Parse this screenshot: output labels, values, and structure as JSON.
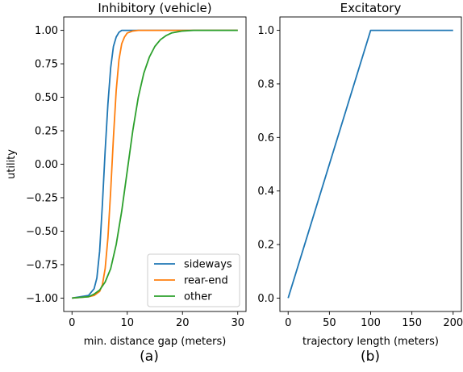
{
  "chart_data": [
    {
      "type": "line",
      "title": "Inhibitory (vehicle)",
      "xlabel": "min. distance gap (meters)",
      "ylabel": "utility",
      "xlim": [
        -1.5,
        31.5
      ],
      "ylim": [
        -1.1,
        1.1
      ],
      "x_ticks": [
        0,
        10,
        20,
        30
      ],
      "x_tick_labels": [
        "0",
        "10",
        "20",
        "30"
      ],
      "y_ticks": [
        -1.0,
        -0.75,
        -0.5,
        -0.25,
        0.0,
        0.25,
        0.5,
        0.75,
        1.0
      ],
      "y_tick_labels": [
        "−1.00",
        "−0.75",
        "−0.50",
        "−0.25",
        "0.00",
        "0.25",
        "0.50",
        "0.75",
        "1.00"
      ],
      "grid": false,
      "legend_position": "lower-right",
      "series": [
        {
          "name": "sideways",
          "color": "#1f77b4",
          "x": [
            0,
            3,
            4,
            4.5,
            5,
            5.5,
            6,
            6.5,
            7,
            7.5,
            8,
            8.5,
            9,
            10,
            11,
            30
          ],
          "y": [
            -1.0,
            -0.98,
            -0.93,
            -0.85,
            -0.65,
            -0.3,
            0.1,
            0.45,
            0.72,
            0.88,
            0.95,
            0.985,
            1.0,
            1.0,
            1.0,
            1.0
          ]
        },
        {
          "name": "rear-end",
          "color": "#ff7f0e",
          "x": [
            0,
            3,
            4,
            5,
            5.5,
            6,
            6.5,
            7,
            7.5,
            8,
            8.5,
            9,
            9.5,
            10,
            11,
            12,
            30
          ],
          "y": [
            -1.0,
            -0.99,
            -0.98,
            -0.95,
            -0.9,
            -0.78,
            -0.55,
            -0.2,
            0.2,
            0.55,
            0.78,
            0.9,
            0.95,
            0.98,
            0.995,
            1.0,
            1.0
          ]
        },
        {
          "name": "other",
          "color": "#2ca02c",
          "x": [
            0,
            3,
            4,
            5,
            6,
            7,
            8,
            9,
            10,
            11,
            12,
            13,
            14,
            15,
            16,
            17,
            18,
            20,
            22,
            30
          ],
          "y": [
            -1.0,
            -0.99,
            -0.97,
            -0.94,
            -0.88,
            -0.78,
            -0.6,
            -0.35,
            -0.05,
            0.25,
            0.5,
            0.68,
            0.8,
            0.88,
            0.93,
            0.96,
            0.98,
            0.995,
            1.0,
            1.0
          ]
        }
      ]
    },
    {
      "type": "line",
      "title": "Excitatory",
      "xlabel": "trajectory length (meters)",
      "ylabel": "",
      "xlim": [
        -10,
        210
      ],
      "ylim": [
        -0.05,
        1.05
      ],
      "x_ticks": [
        0,
        50,
        100,
        150,
        200
      ],
      "x_tick_labels": [
        "0",
        "50",
        "100",
        "150",
        "200"
      ],
      "y_ticks": [
        0.0,
        0.2,
        0.4,
        0.6,
        0.8,
        1.0
      ],
      "y_tick_labels": [
        "0.0",
        "0.2",
        "0.4",
        "0.6",
        "0.8",
        "1.0"
      ],
      "grid": false,
      "series": [
        {
          "color": "#1f77b4",
          "x": [
            0,
            100,
            200
          ],
          "y": [
            0.0,
            1.0,
            1.0
          ]
        }
      ]
    }
  ],
  "captions": {
    "a": "(a)",
    "b": "(b)"
  }
}
